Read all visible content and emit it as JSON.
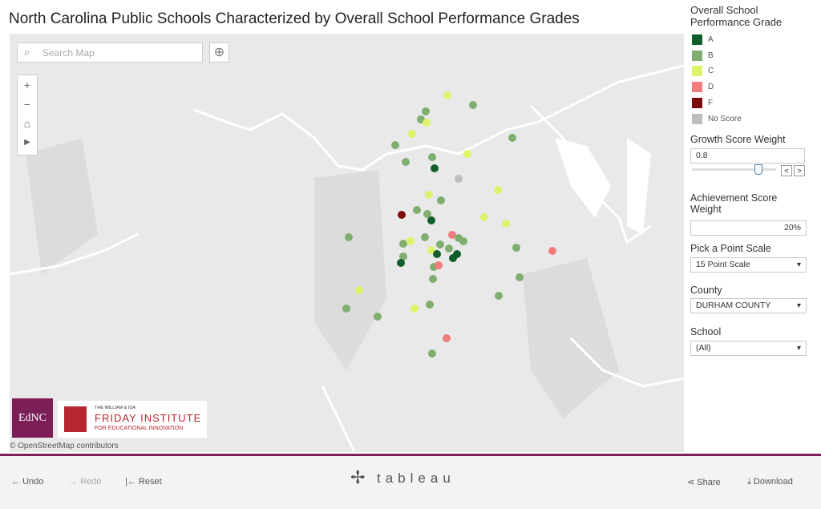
{
  "header": {
    "title": "North Carolina Public Schools Characterized by Overall School Performance Grades"
  },
  "map": {
    "search_placeholder": "Search Map",
    "attribution": "© OpenStreetMap contributors"
  },
  "logos": {
    "ednc": "EdNC",
    "friday_line1": "THE WILLIAM & IDA",
    "friday_line2": "FRIDAY INSTITUTE",
    "friday_line3": "FOR EDUCATIONAL INNOVATION"
  },
  "legend": {
    "title": "Overall School Performance Grade",
    "items": [
      {
        "label": "A",
        "color": "#0f5e2c"
      },
      {
        "label": "B",
        "color": "#7fae6f"
      },
      {
        "label": "C",
        "color": "#def26b"
      },
      {
        "label": "D",
        "color": "#f27b7b"
      },
      {
        "label": "F",
        "color": "#7c0c0c"
      },
      {
        "label": "No Score",
        "color": "#bdbdbd"
      }
    ]
  },
  "controls": {
    "growth_label": "Growth Score Weight",
    "growth_value": "0.8",
    "achievement_label": "Achievement Score Weight",
    "achievement_value": "20%",
    "scale_label": "Pick a Point Scale",
    "scale_value": "15 Point Scale",
    "county_label": "County",
    "county_value": "DURHAM COUNTY",
    "school_label": "School",
    "school_value": "(All)"
  },
  "toolbar": {
    "undo": "Undo",
    "redo": "Redo",
    "reset": "Reset",
    "brand": "tableau",
    "share": "Share",
    "download": "Download"
  }
}
